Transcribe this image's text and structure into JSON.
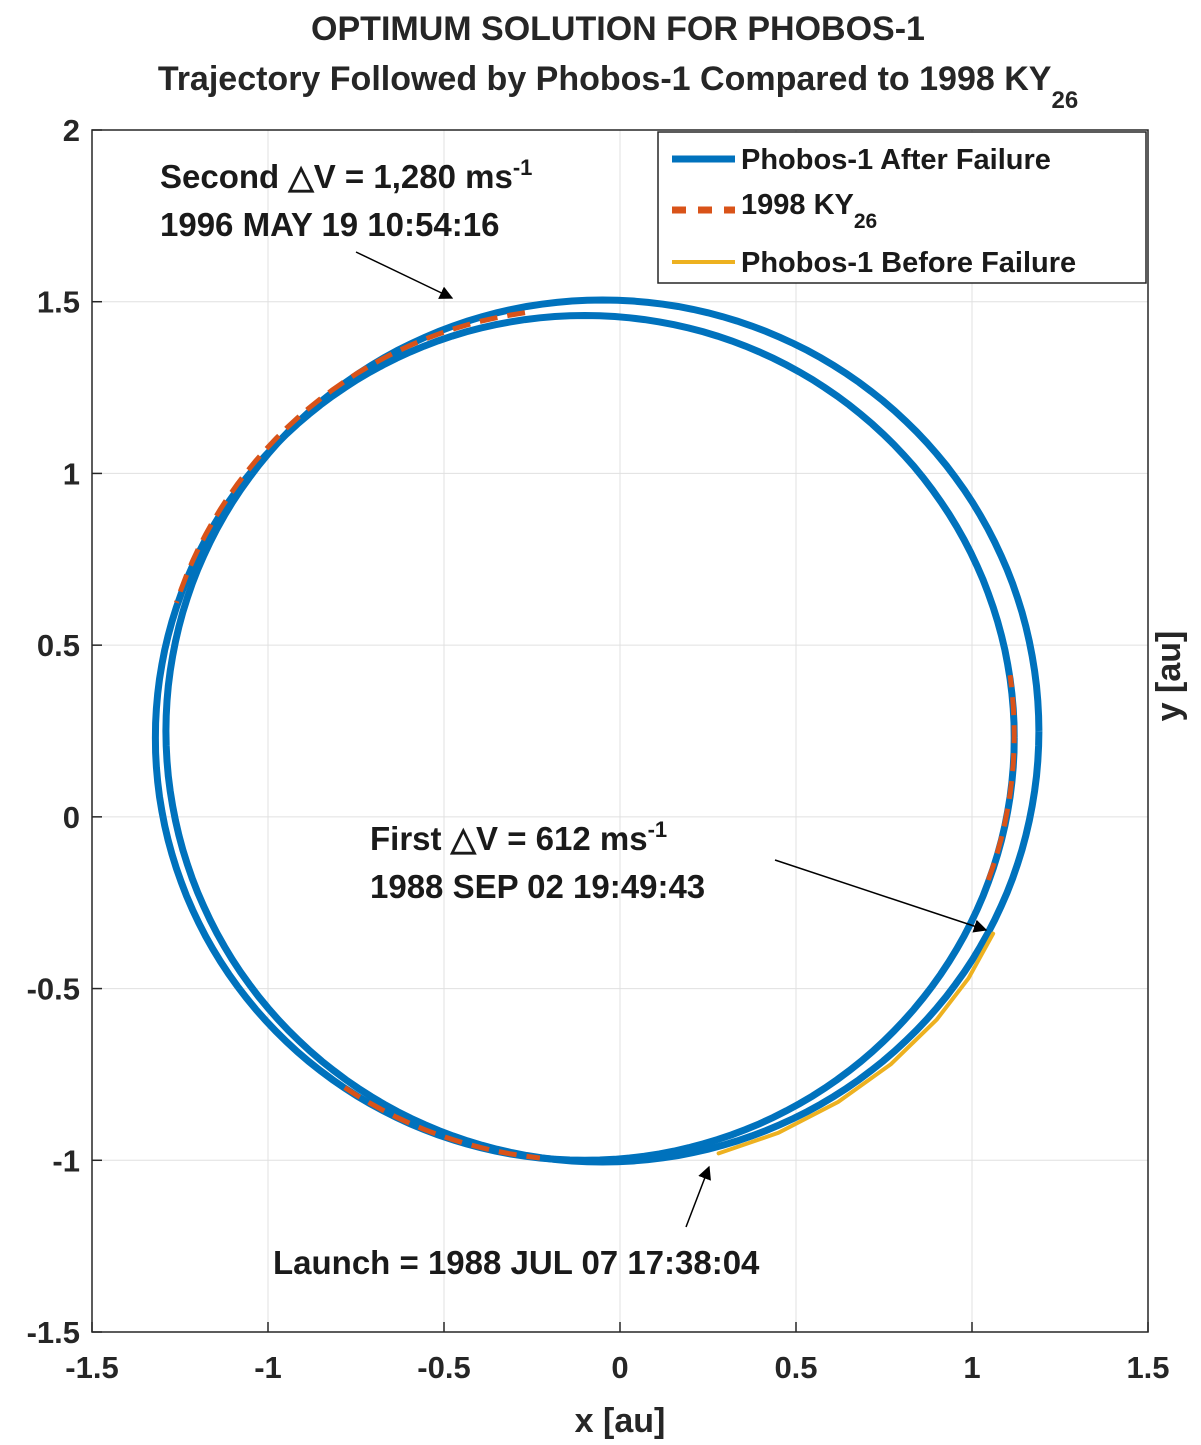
{
  "chart_data": {
    "type": "line",
    "title_line1": "OPTIMUM SOLUTION FOR PHOBOS-1",
    "title_line2_main": "Trajectory Followed by Phobos-1 Compared to 1998 KY",
    "title_line2_sub": "26",
    "xlabel": "x [au]",
    "ylabel": "y [au]",
    "xlim": [
      -1.5,
      1.5
    ],
    "ylim": [
      -1.5,
      2
    ],
    "xticks": [
      -1.5,
      -1,
      -0.5,
      0,
      0.5,
      1,
      1.5
    ],
    "xtick_labels": [
      "-1.5",
      "-1",
      "-0.5",
      "0",
      "0.5",
      "1",
      "1.5"
    ],
    "yticks": [
      -1.5,
      -1,
      -0.5,
      0,
      0.5,
      1,
      1.5,
      2
    ],
    "ytick_labels": [
      "-1.5",
      "-1",
      "-0.5",
      "0",
      "0.5",
      "1",
      "1.5",
      "2"
    ],
    "grid": true,
    "legend_position": "top-right",
    "series": [
      {
        "name": "Phobos-1 After Failure",
        "color": "#0072BD",
        "style": "solid",
        "orbits": [
          {
            "center": [
              -0.05,
              0.25
            ],
            "rx": 1.24,
            "ry": 1.255
          },
          {
            "center": [
              -0.1,
              0.23
            ],
            "rx": 1.22,
            "ry": 1.23
          }
        ]
      },
      {
        "name": "1998 KY",
        "name_sub": "26",
        "color": "#D95319",
        "style": "dashed",
        "orbits": [
          {
            "center": [
              -0.1,
              0.24
            ],
            "rx": 1.22,
            "ry": 1.24
          }
        ],
        "visible_arcs_deg": [
          [
            98,
            162
          ],
          [
            236,
            265
          ],
          [
            340,
            368
          ]
        ]
      },
      {
        "name": "Phobos-1 Before Failure",
        "color": "#EDB120",
        "style": "solid",
        "points": [
          [
            0.28,
            -0.98
          ],
          [
            0.45,
            -0.92
          ],
          [
            0.62,
            -0.83
          ],
          [
            0.77,
            -0.72
          ],
          [
            0.9,
            -0.59
          ],
          [
            0.99,
            -0.47
          ],
          [
            1.06,
            -0.34
          ]
        ]
      }
    ],
    "annotations": [
      {
        "id": "second",
        "line1_main": "Second △V = 1,280 ms",
        "line1_sup": "-1",
        "line2": "1996 MAY 19 10:54:16",
        "anchor": [
          -0.38,
          1.47
        ]
      },
      {
        "id": "first",
        "line1_main": "First △V = 612 ms",
        "line1_sup": "-1",
        "line2": "1988 SEP 02 19:49:43",
        "anchor": [
          1.05,
          -0.34
        ]
      },
      {
        "id": "launch",
        "line1_main": "Launch = 1988 JUL 07 17:38:04",
        "anchor": [
          0.26,
          -0.96
        ]
      }
    ]
  }
}
